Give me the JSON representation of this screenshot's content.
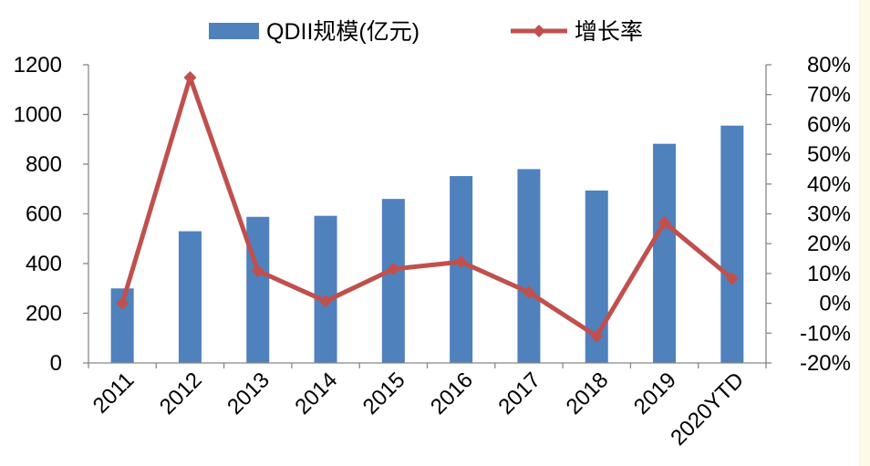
{
  "chart_data": {
    "type": "bar",
    "title": "",
    "xlabel": "",
    "ylabel": "",
    "categories": [
      "2011",
      "2012",
      "2013",
      "2014",
      "2015",
      "2016",
      "2017",
      "2018",
      "2019",
      "2020YTD"
    ],
    "series": [
      {
        "name": "QDII规模(亿元)",
        "type": "bar",
        "axis": "left",
        "color": "#4f81bd",
        "values": [
          300,
          530,
          588,
          592,
          660,
          752,
          780,
          694,
          882,
          955
        ]
      },
      {
        "name": "增长率",
        "type": "line",
        "marker": "diamond",
        "axis": "right",
        "color": "#c0504d",
        "values": [
          0.0,
          75.7,
          10.9,
          0.7,
          11.5,
          13.9,
          3.7,
          -11.0,
          27.1,
          8.3
        ]
      }
    ],
    "y_left": {
      "ylim": [
        0,
        1200
      ],
      "ticks": [
        0,
        200,
        400,
        600,
        800,
        1000,
        1200
      ],
      "tick_labels": [
        "0",
        "200",
        "400",
        "600",
        "800",
        "1000",
        "1200"
      ]
    },
    "y_right": {
      "ylim": [
        -20,
        80
      ],
      "ticks": [
        -20,
        -10,
        0,
        10,
        20,
        30,
        40,
        50,
        60,
        70,
        80
      ],
      "tick_labels": [
        "-20%",
        "-10%",
        "0%",
        "10%",
        "20%",
        "30%",
        "40%",
        "50%",
        "60%",
        "70%",
        "80%"
      ]
    },
    "grid": false,
    "legend": "top-center",
    "legend_items": [
      {
        "label": "QDII规模(亿元)",
        "symbol": "bar",
        "color": "#4f81bd"
      },
      {
        "label": "增长率",
        "symbol": "line-diamond",
        "color": "#c0504d"
      }
    ]
  }
}
